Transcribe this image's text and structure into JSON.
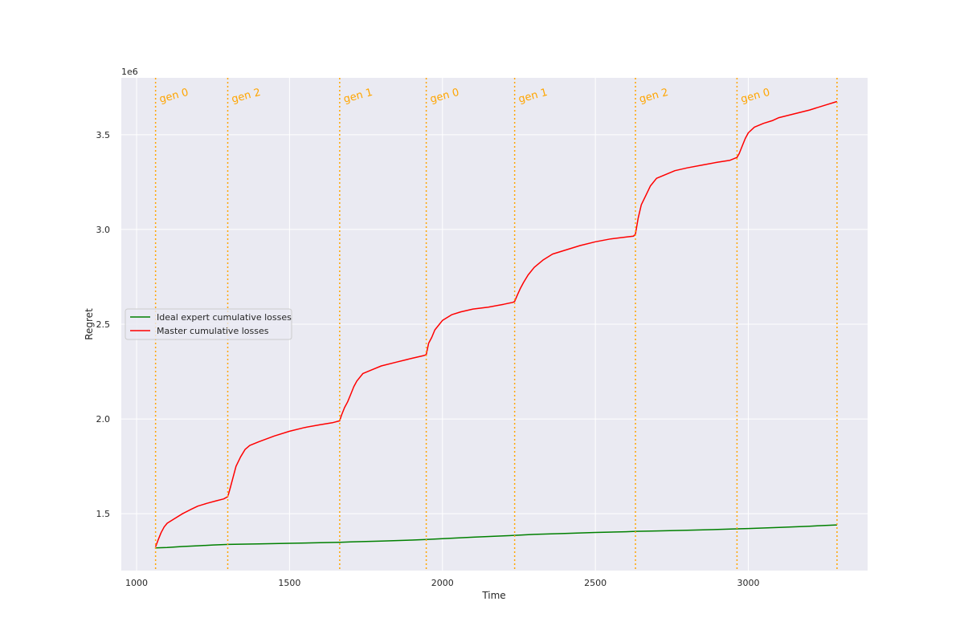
{
  "chart_data": {
    "type": "line",
    "xlabel": "Time",
    "ylabel": "Regret",
    "y_offset_label": "1e6",
    "xlim": [
      950,
      3390
    ],
    "ylim": [
      1.2,
      3.8
    ],
    "xticks": [
      1000,
      1500,
      2000,
      2500,
      3000
    ],
    "xtick_labels": [
      "1000",
      "1500",
      "2000",
      "2500",
      "3000"
    ],
    "yticks": [
      1.5,
      2.0,
      2.5,
      3.0,
      3.5
    ],
    "ytick_labels": [
      "1.5",
      "2.0",
      "2.5",
      "3.0",
      "3.5"
    ],
    "grid": true,
    "legend_position": "center-left",
    "series": [
      {
        "name": "Ideal expert cumulative losses",
        "color": "#008000",
        "x": [
          1060,
          1100,
          1150,
          1200,
          1250,
          1300,
          1400,
          1500,
          1600,
          1666,
          1700,
          1800,
          1900,
          1947,
          2000,
          2100,
          2200,
          2236,
          2300,
          2400,
          2500,
          2600,
          2631,
          2700,
          2800,
          2900,
          2963,
          3000,
          3100,
          3200,
          3290
        ],
        "y": [
          1.32,
          1.322,
          1.327,
          1.331,
          1.335,
          1.338,
          1.341,
          1.344,
          1.347,
          1.349,
          1.351,
          1.356,
          1.361,
          1.364,
          1.368,
          1.376,
          1.383,
          1.386,
          1.391,
          1.396,
          1.401,
          1.405,
          1.407,
          1.409,
          1.413,
          1.417,
          1.42,
          1.422,
          1.428,
          1.434,
          1.441
        ]
      },
      {
        "name": "Master cumulative losses",
        "color": "#ff0000",
        "x": [
          1062,
          1070,
          1080,
          1090,
          1100,
          1120,
          1150,
          1180,
          1200,
          1230,
          1260,
          1285,
          1298,
          1305,
          1315,
          1325,
          1340,
          1355,
          1370,
          1400,
          1450,
          1500,
          1550,
          1600,
          1640,
          1664,
          1670,
          1680,
          1690,
          1700,
          1710,
          1720,
          1740,
          1770,
          1800,
          1850,
          1900,
          1940,
          1947,
          1955,
          1965,
          1975,
          1990,
          2000,
          2030,
          2060,
          2100,
          2150,
          2200,
          2230,
          2236,
          2245,
          2255,
          2265,
          2280,
          2300,
          2330,
          2360,
          2400,
          2450,
          2500,
          2550,
          2600,
          2625,
          2631,
          2640,
          2650,
          2665,
          2680,
          2700,
          2730,
          2760,
          2800,
          2850,
          2900,
          2940,
          2963,
          2970,
          2980,
          2990,
          3000,
          3020,
          3050,
          3080,
          3100,
          3150,
          3200,
          3250,
          3290
        ],
        "y": [
          1.325,
          1.36,
          1.4,
          1.43,
          1.45,
          1.47,
          1.5,
          1.525,
          1.54,
          1.555,
          1.568,
          1.578,
          1.59,
          1.63,
          1.69,
          1.75,
          1.8,
          1.84,
          1.86,
          1.88,
          1.91,
          1.935,
          1.955,
          1.97,
          1.98,
          1.99,
          2.02,
          2.06,
          2.09,
          2.13,
          2.17,
          2.2,
          2.24,
          2.26,
          2.28,
          2.3,
          2.32,
          2.335,
          2.34,
          2.4,
          2.43,
          2.47,
          2.5,
          2.52,
          2.55,
          2.565,
          2.58,
          2.59,
          2.605,
          2.615,
          2.62,
          2.655,
          2.69,
          2.72,
          2.76,
          2.8,
          2.84,
          2.87,
          2.89,
          2.915,
          2.935,
          2.95,
          2.96,
          2.965,
          2.975,
          3.06,
          3.13,
          3.18,
          3.23,
          3.27,
          3.29,
          3.31,
          3.325,
          3.34,
          3.355,
          3.365,
          3.38,
          3.4,
          3.44,
          3.48,
          3.51,
          3.54,
          3.56,
          3.575,
          3.59,
          3.61,
          3.63,
          3.655,
          3.675
        ]
      }
    ],
    "vlines": {
      "color": "#ffa500",
      "style": "dotted",
      "x": [
        1062,
        1298,
        1664,
        1947,
        2236,
        2631,
        2963,
        3290
      ]
    },
    "annotations": [
      {
        "text": "gen 0",
        "x": 1062
      },
      {
        "text": "gen 2",
        "x": 1298
      },
      {
        "text": "gen 1",
        "x": 1664
      },
      {
        "text": "gen 0",
        "x": 1947
      },
      {
        "text": "gen 1",
        "x": 2236
      },
      {
        "text": "gen 2",
        "x": 2631
      },
      {
        "text": "gen 0",
        "x": 2963
      }
    ]
  }
}
